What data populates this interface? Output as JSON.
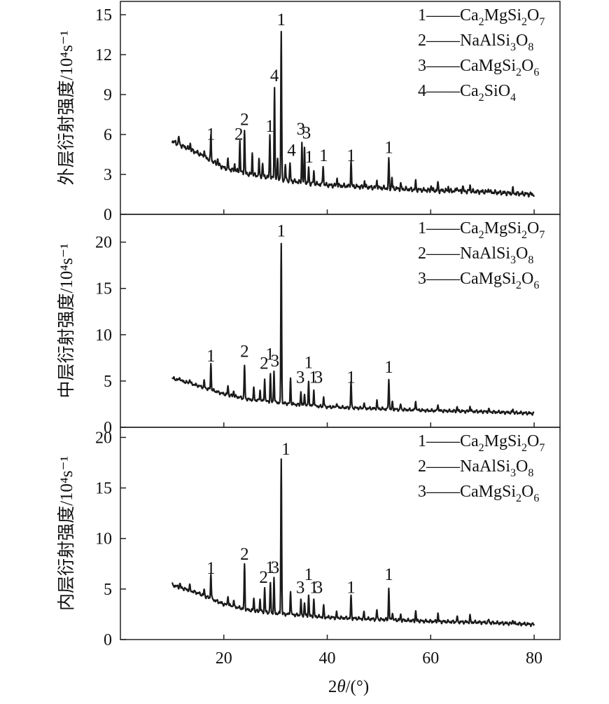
{
  "chart_data": [
    {
      "type": "line",
      "panel": "outer",
      "ylabel": "外层衍射强度/10⁴s⁻¹",
      "ylim": [
        0,
        16
      ],
      "yticks": [
        "0",
        "3",
        "6",
        "9",
        "12",
        "15"
      ],
      "legend": {
        "placement": "top-right",
        "entries": [
          {
            "num": "1",
            "formula": [
              [
                "Ca",
                ""
              ],
              [
                "2",
                "sub"
              ],
              [
                "MgSi",
                ""
              ],
              [
                "2",
                "sub"
              ],
              [
                "O",
                ""
              ],
              [
                "7",
                "sub"
              ]
            ]
          },
          {
            "num": "2",
            "formula": [
              [
                "NaAlSi",
                ""
              ],
              [
                "3",
                "sub"
              ],
              [
                "O",
                ""
              ],
              [
                "8",
                "sub"
              ]
            ]
          },
          {
            "num": "3",
            "formula": [
              [
                "CaMgSi",
                ""
              ],
              [
                "2",
                "sub"
              ],
              [
                "O",
                ""
              ],
              [
                "6",
                "sub"
              ]
            ]
          },
          {
            "num": "4",
            "formula": [
              [
                "Ca",
                ""
              ],
              [
                "2",
                "sub"
              ],
              [
                "SiO",
                ""
              ],
              [
                "4",
                "sub"
              ]
            ]
          }
        ]
      },
      "baseline": [
        [
          10,
          5.5
        ],
        [
          15,
          4.6
        ],
        [
          20,
          3.5
        ],
        [
          25,
          3.0
        ],
        [
          30,
          2.7
        ],
        [
          35,
          2.4
        ],
        [
          40,
          2.2
        ],
        [
          50,
          2.0
        ],
        [
          60,
          1.8
        ],
        [
          70,
          1.7
        ],
        [
          80,
          1.5
        ]
      ],
      "peaks": [
        [
          11.3,
          0.6
        ],
        [
          13.5,
          0.5
        ],
        [
          16.2,
          0.5
        ],
        [
          17.5,
          1.9
        ],
        [
          18.8,
          0.4
        ],
        [
          20.8,
          0.7
        ],
        [
          22.1,
          0.5
        ],
        [
          23.1,
          2.3
        ],
        [
          24.0,
          3.2
        ],
        [
          25.5,
          1.6
        ],
        [
          26.8,
          1.2
        ],
        [
          27.5,
          1.0
        ],
        [
          28.9,
          3.2
        ],
        [
          29.8,
          6.8
        ],
        [
          30.4,
          1.5
        ],
        [
          31.1,
          11.0
        ],
        [
          31.9,
          1.1
        ],
        [
          32.8,
          1.3
        ],
        [
          35.1,
          3.0
        ],
        [
          35.6,
          2.5
        ],
        [
          36.4,
          1.1
        ],
        [
          37.4,
          0.9
        ],
        [
          39.2,
          1.5
        ],
        [
          41.9,
          0.6
        ],
        [
          44.6,
          1.9
        ],
        [
          47.2,
          0.5
        ],
        [
          49.6,
          0.6
        ],
        [
          51.9,
          2.2
        ],
        [
          52.5,
          0.8
        ],
        [
          54.2,
          0.4
        ],
        [
          57.1,
          0.6
        ],
        [
          60.1,
          0.4
        ],
        [
          61.4,
          0.6
        ],
        [
          63.4,
          0.3
        ],
        [
          65.1,
          0.4
        ],
        [
          66.2,
          0.4
        ],
        [
          67.6,
          0.5
        ],
        [
          71.2,
          0.3
        ],
        [
          75.9,
          0.3
        ]
      ],
      "peak_labels": [
        {
          "text": "1",
          "x": 17.5,
          "y": 5.6
        },
        {
          "text": "2",
          "x": 22.9,
          "y": 5.6
        },
        {
          "text": "2",
          "x": 24.0,
          "y": 6.7
        },
        {
          "text": "1",
          "x": 28.9,
          "y": 6.2
        },
        {
          "text": "4",
          "x": 29.8,
          "y": 10.0
        },
        {
          "text": "1",
          "x": 31.1,
          "y": 14.2
        },
        {
          "text": "4",
          "x": 33.1,
          "y": 4.4
        },
        {
          "text": "3",
          "x": 34.9,
          "y": 6.0
        },
        {
          "text": "3",
          "x": 36.0,
          "y": 5.7
        },
        {
          "text": "1",
          "x": 36.5,
          "y": 3.9
        },
        {
          "text": "1",
          "x": 39.3,
          "y": 4.0
        },
        {
          "text": "1",
          "x": 44.6,
          "y": 4.0
        },
        {
          "text": "1",
          "x": 51.9,
          "y": 4.6
        }
      ]
    },
    {
      "type": "line",
      "panel": "middle",
      "ylabel": "中层衍射强度/10⁴s⁻¹",
      "ylim": [
        0,
        23
      ],
      "yticks": [
        "0",
        "5",
        "10",
        "15",
        "20"
      ],
      "legend": {
        "placement": "top-right",
        "entries": [
          {
            "num": "1",
            "formula": [
              [
                "Ca",
                ""
              ],
              [
                "2",
                "sub"
              ],
              [
                "MgSi",
                ""
              ],
              [
                "2",
                "sub"
              ],
              [
                "O",
                ""
              ],
              [
                "7",
                "sub"
              ]
            ]
          },
          {
            "num": "2",
            "formula": [
              [
                "NaAlSi",
                ""
              ],
              [
                "3",
                "sub"
              ],
              [
                "O",
                ""
              ],
              [
                "8",
                "sub"
              ]
            ]
          },
          {
            "num": "3",
            "formula": [
              [
                "CaMgSi",
                ""
              ],
              [
                "2",
                "sub"
              ],
              [
                "O",
                ""
              ],
              [
                "6",
                "sub"
              ]
            ]
          }
        ]
      },
      "baseline": [
        [
          10,
          5.3
        ],
        [
          15,
          4.5
        ],
        [
          20,
          3.6
        ],
        [
          25,
          3.0
        ],
        [
          30,
          2.7
        ],
        [
          35,
          2.4
        ],
        [
          40,
          2.2
        ],
        [
          50,
          2.0
        ],
        [
          60,
          1.8
        ],
        [
          70,
          1.7
        ],
        [
          80,
          1.5
        ]
      ],
      "peaks": [
        [
          11.5,
          0.4
        ],
        [
          13.4,
          0.5
        ],
        [
          16.2,
          0.7
        ],
        [
          17.5,
          2.8
        ],
        [
          20.8,
          1.0
        ],
        [
          21.9,
          0.6
        ],
        [
          24.0,
          3.6
        ],
        [
          25.8,
          1.3
        ],
        [
          27.0,
          1.2
        ],
        [
          27.9,
          2.5
        ],
        [
          29.0,
          3.0
        ],
        [
          29.7,
          3.4
        ],
        [
          31.1,
          17.2
        ],
        [
          32.9,
          2.7
        ],
        [
          34.9,
          1.5
        ],
        [
          35.6,
          1.3
        ],
        [
          36.4,
          2.7
        ],
        [
          37.4,
          1.8
        ],
        [
          39.3,
          1.1
        ],
        [
          41.8,
          0.5
        ],
        [
          44.6,
          2.8
        ],
        [
          47.1,
          0.6
        ],
        [
          49.6,
          0.9
        ],
        [
          51.9,
          3.3
        ],
        [
          52.6,
          0.8
        ],
        [
          54.2,
          0.6
        ],
        [
          57.1,
          1.1
        ],
        [
          61.4,
          0.8
        ],
        [
          65.1,
          0.5
        ],
        [
          67.6,
          0.6
        ],
        [
          71.2,
          0.3
        ],
        [
          75.9,
          0.4
        ]
      ],
      "peak_labels": [
        {
          "text": "1",
          "x": 17.5,
          "y": 7.1
        },
        {
          "text": "2",
          "x": 24.0,
          "y": 7.6
        },
        {
          "text": "2",
          "x": 27.8,
          "y": 6.3
        },
        {
          "text": "1",
          "x": 28.9,
          "y": 7.3
        },
        {
          "text": "3",
          "x": 29.9,
          "y": 6.6
        },
        {
          "text": "1",
          "x": 31.1,
          "y": 20.6
        },
        {
          "text": "3",
          "x": 34.8,
          "y": 4.8
        },
        {
          "text": "1",
          "x": 36.4,
          "y": 6.4
        },
        {
          "text": "1",
          "x": 37.3,
          "y": 4.8
        },
        {
          "text": "3",
          "x": 38.3,
          "y": 4.8
        },
        {
          "text": "1",
          "x": 44.6,
          "y": 4.8
        },
        {
          "text": "1",
          "x": 51.9,
          "y": 5.9
        }
      ]
    },
    {
      "type": "line",
      "panel": "inner",
      "ylabel": "内层衍射强度/10⁴s⁻¹",
      "ylim": [
        0,
        21
      ],
      "yticks": [
        "0",
        "5",
        "10",
        "15",
        "20"
      ],
      "legend": {
        "placement": "top-right",
        "entries": [
          {
            "num": "1",
            "formula": [
              [
                "Ca",
                ""
              ],
              [
                "2",
                "sub"
              ],
              [
                "MgSi",
                ""
              ],
              [
                "2",
                "sub"
              ],
              [
                "O",
                ""
              ],
              [
                "7",
                "sub"
              ]
            ]
          },
          {
            "num": "2",
            "formula": [
              [
                "NaAlSi",
                ""
              ],
              [
                "3",
                "sub"
              ],
              [
                "O",
                ""
              ],
              [
                "8",
                "sub"
              ]
            ]
          },
          {
            "num": "3",
            "formula": [
              [
                "CaMgSi",
                ""
              ],
              [
                "2",
                "sub"
              ],
              [
                "O",
                ""
              ],
              [
                "6",
                "sub"
              ]
            ]
          }
        ]
      },
      "baseline": [
        [
          10,
          5.4
        ],
        [
          15,
          4.6
        ],
        [
          20,
          3.5
        ],
        [
          25,
          2.9
        ],
        [
          30,
          2.6
        ],
        [
          35,
          2.4
        ],
        [
          40,
          2.2
        ],
        [
          50,
          2.0
        ],
        [
          60,
          1.8
        ],
        [
          70,
          1.7
        ],
        [
          80,
          1.5
        ]
      ],
      "peaks": [
        [
          11.5,
          0.4
        ],
        [
          13.4,
          0.5
        ],
        [
          16.2,
          0.6
        ],
        [
          17.5,
          2.5
        ],
        [
          20.8,
          1.0
        ],
        [
          21.9,
          0.6
        ],
        [
          24.0,
          4.4
        ],
        [
          25.8,
          1.3
        ],
        [
          27.0,
          1.2
        ],
        [
          27.9,
          2.4
        ],
        [
          29.0,
          3.0
        ],
        [
          29.7,
          3.4
        ],
        [
          31.1,
          15.4
        ],
        [
          32.9,
          2.4
        ],
        [
          34.9,
          1.5
        ],
        [
          35.6,
          1.3
        ],
        [
          36.4,
          2.1
        ],
        [
          37.4,
          1.6
        ],
        [
          39.3,
          1.1
        ],
        [
          41.8,
          0.5
        ],
        [
          44.6,
          2.2
        ],
        [
          47.1,
          0.6
        ],
        [
          49.6,
          0.9
        ],
        [
          51.9,
          3.1
        ],
        [
          52.6,
          0.8
        ],
        [
          54.2,
          0.6
        ],
        [
          57.1,
          1.0
        ],
        [
          61.4,
          0.8
        ],
        [
          65.1,
          0.5
        ],
        [
          67.6,
          0.6
        ],
        [
          71.2,
          0.3
        ],
        [
          75.9,
          0.4
        ]
      ],
      "peak_labels": [
        {
          "text": "1",
          "x": 17.5,
          "y": 6.5
        },
        {
          "text": "2",
          "x": 24.0,
          "y": 7.9
        },
        {
          "text": "2",
          "x": 27.7,
          "y": 5.6
        },
        {
          "text": "1",
          "x": 28.9,
          "y": 6.6
        },
        {
          "text": "3",
          "x": 29.9,
          "y": 6.6
        },
        {
          "text": "1",
          "x": 32.0,
          "y": 18.3
        },
        {
          "text": "3",
          "x": 34.8,
          "y": 4.6
        },
        {
          "text": "1",
          "x": 36.4,
          "y": 5.9
        },
        {
          "text": "1",
          "x": 37.4,
          "y": 4.6
        },
        {
          "text": "3",
          "x": 38.3,
          "y": 4.6
        },
        {
          "text": "1",
          "x": 44.6,
          "y": 4.6
        },
        {
          "text": "1",
          "x": 51.9,
          "y": 5.9
        }
      ]
    }
  ],
  "shared_x": {
    "xlim": [
      0,
      85
    ],
    "xticks": [
      "20",
      "40",
      "60",
      "80"
    ],
    "xlabel_parts": [
      "2",
      "θ",
      "/(°)"
    ]
  },
  "colors": {
    "line": "#1a1a1a",
    "axis": "#222222",
    "text": "#111111"
  }
}
